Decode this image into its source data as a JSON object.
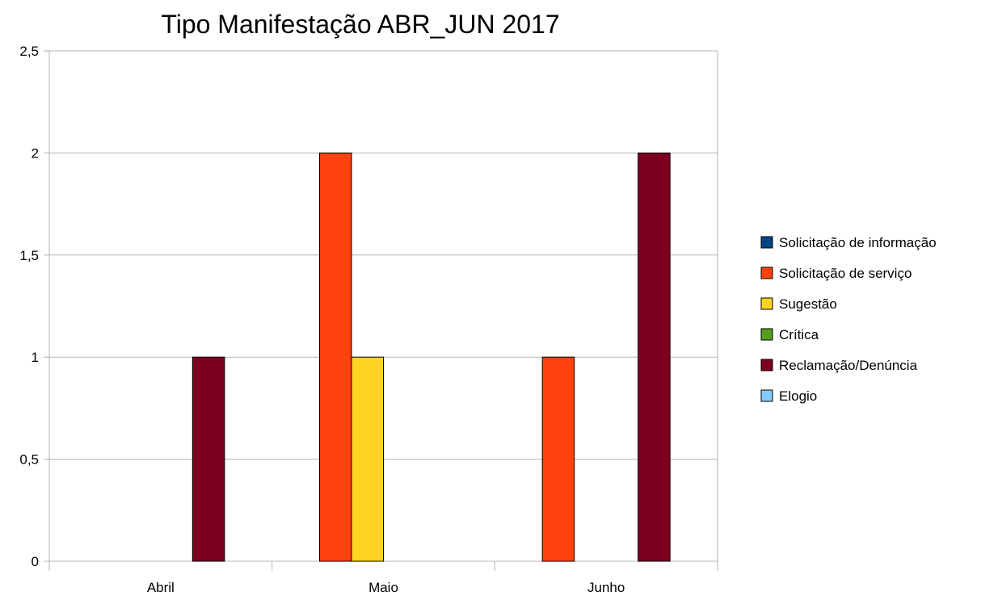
{
  "chart_data": {
    "type": "bar",
    "title": "Tipo Manifestação ABR_JUN 2017",
    "xlabel": "",
    "ylabel": "",
    "categories": [
      "Abril",
      "Maio",
      "Junho"
    ],
    "ylim": [
      0,
      2.5
    ],
    "y_ticks": [
      "0",
      "0,5",
      "1",
      "1,5",
      "2",
      "2,5"
    ],
    "y_tick_values": [
      0,
      0.5,
      1,
      1.5,
      2,
      2.5
    ],
    "grid": true,
    "legend_position": "right",
    "series": [
      {
        "name": "Solicitação de informação",
        "color": "#004586",
        "values": [
          0,
          0,
          0
        ]
      },
      {
        "name": "Solicitação de serviço",
        "color": "#ff420e",
        "values": [
          0,
          2,
          1
        ]
      },
      {
        "name": "Sugestão",
        "color": "#ffd320",
        "values": [
          0,
          1,
          0
        ]
      },
      {
        "name": "Crítica",
        "color": "#579d1c",
        "values": [
          0,
          0,
          0
        ]
      },
      {
        "name": "Reclamação/Denúncia",
        "color": "#7e0021",
        "values": [
          1,
          0,
          2
        ]
      },
      {
        "name": "Elogio",
        "color": "#83caff",
        "values": [
          0,
          0,
          0
        ]
      }
    ]
  }
}
